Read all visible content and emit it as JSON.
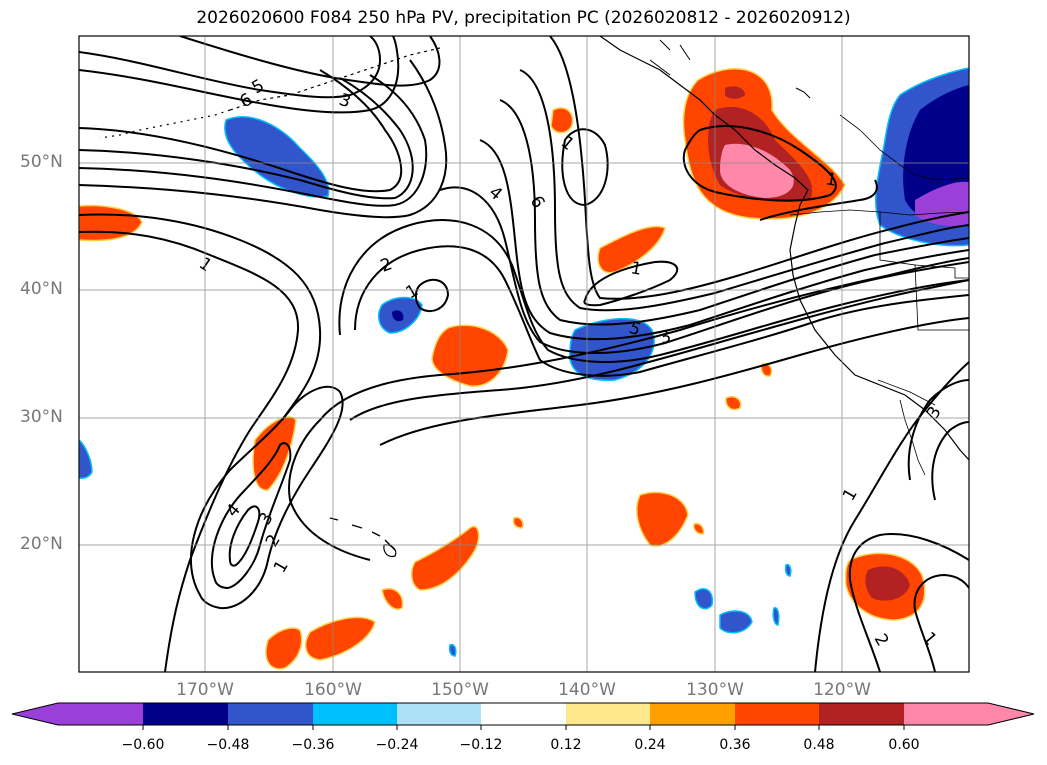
{
  "title": "2026020600 F084 250 hPa PV, precipitation PC (2026020812 - 2026020912)",
  "map": {
    "lat_labels": [
      "50°N",
      "40°N",
      "30°N",
      "20°N"
    ],
    "lon_labels": [
      "170°W",
      "160°W",
      "150°W",
      "140°W",
      "130°W",
      "120°W"
    ],
    "extent": {
      "lon_min": -180,
      "lon_max": -110,
      "lat_min": 10,
      "lat_max": 60
    },
    "grid": true,
    "contour_labels": [
      "5",
      "6",
      "3",
      "1",
      "2",
      "4",
      "6",
      "1",
      "1",
      "1",
      "5",
      "3",
      "1",
      "4",
      "3",
      "2",
      "1",
      "1",
      "1",
      "2",
      "3"
    ]
  },
  "colorbar": {
    "extend": "both",
    "tick_labels": [
      "−0.60",
      "−0.48",
      "−0.36",
      "−0.24",
      "−0.12",
      "0.12",
      "0.24",
      "0.36",
      "0.48",
      "0.60"
    ],
    "colors": [
      "#9a40d8",
      "#00008b",
      "#3355cc",
      "#00bfff",
      "#aee0f8",
      "#ffffff",
      "#ffe88c",
      "#ffa000",
      "#ff4500",
      "#b22222",
      "#ff88aa"
    ]
  }
}
